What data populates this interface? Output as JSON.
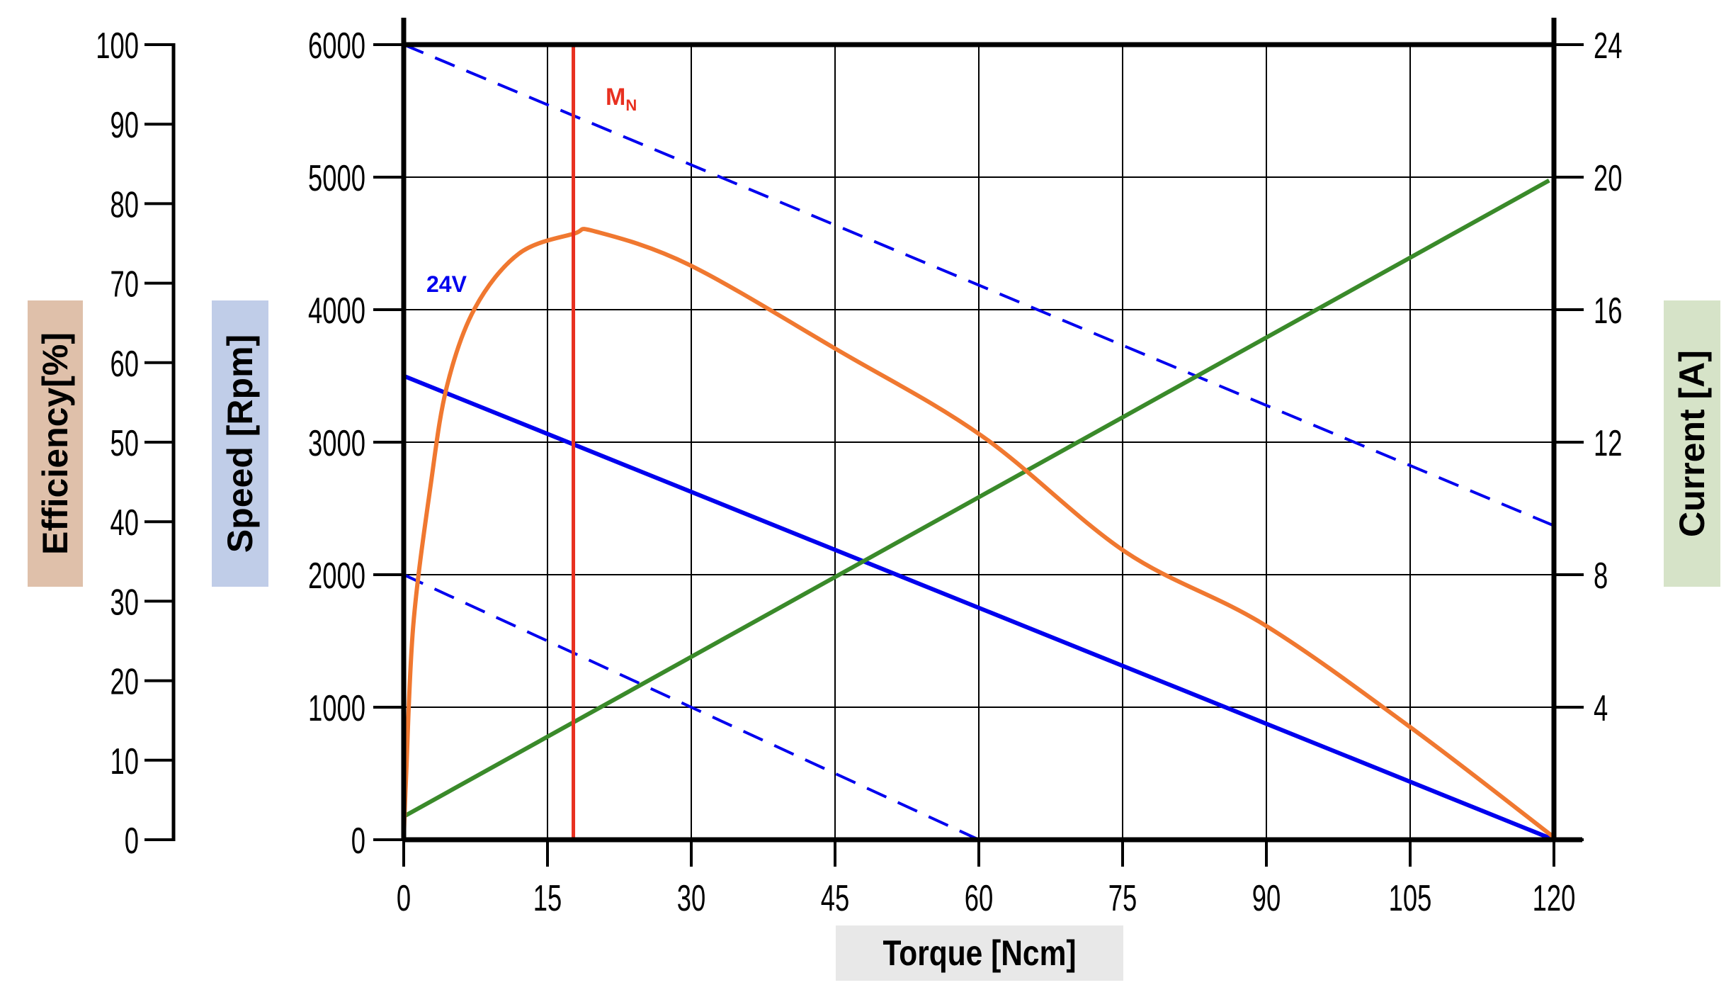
{
  "chart_data": {
    "type": "line",
    "xlabel": "Torque [Ncm]",
    "x_ticks": [
      "0",
      "15",
      "30",
      "45",
      "60",
      "75",
      "90",
      "105",
      "120"
    ],
    "xlim": [
      0,
      120
    ],
    "grid": true,
    "axes": {
      "efficiency": {
        "label": "Efficiency[%]",
        "ylim": [
          0,
          100
        ],
        "ticks": [
          "0",
          "10",
          "20",
          "30",
          "40",
          "50",
          "60",
          "70",
          "80",
          "90",
          "100"
        ],
        "color": "#dfc0aa",
        "position": "far-left"
      },
      "speed": {
        "label": "Speed [Rpm]",
        "ylim": [
          0,
          6000
        ],
        "ticks": [
          "0",
          "1000",
          "2000",
          "3000",
          "4000",
          "5000",
          "6000"
        ],
        "color": "#c0cde8",
        "position": "left"
      },
      "current": {
        "label": "Current [A]",
        "ylim": [
          0,
          24
        ],
        "ticks": [
          "4",
          "8",
          "12",
          "16",
          "20",
          "24"
        ],
        "color": "#d6e3c8",
        "position": "right"
      }
    },
    "series": [
      {
        "axis": "speed",
        "color": "#0000ee",
        "style": "solid",
        "x": [
          0,
          120
        ],
        "y": [
          3500,
          0
        ]
      },
      {
        "axis": "speed",
        "color": "#0000ee",
        "style": "dashed",
        "x": [
          0,
          120
        ],
        "y": [
          6000,
          2370
        ]
      },
      {
        "axis": "speed",
        "color": "#0000ee",
        "style": "dashed",
        "x": [
          0,
          60
        ],
        "y": [
          2000,
          0
        ]
      },
      {
        "axis": "current",
        "color": "#3a8a2a",
        "style": "solid",
        "x": [
          0,
          119.5
        ],
        "y": [
          0.7,
          19.9
        ]
      },
      {
        "axis": "efficiency",
        "color": "#f07830",
        "style": "solid",
        "x": [
          0,
          0.25,
          1,
          2.8,
          4.5,
          7.4,
          12,
          17.7,
          20,
          29.8,
          45.4,
          60.3,
          75.3,
          89.7,
          105.3,
          120
        ],
        "y": [
          0,
          8,
          27,
          44.5,
          57,
          66.8,
          73.7,
          76.2,
          76.5,
          72.3,
          61.5,
          50.8,
          36.2,
          27.1,
          13.9,
          0.3
        ]
      }
    ],
    "annotations": [
      {
        "text": "24V",
        "color": "#0000ee"
      },
      {
        "text": "M",
        "subscript": "N",
        "color": "#e83020",
        "x": 17.7
      }
    ]
  }
}
